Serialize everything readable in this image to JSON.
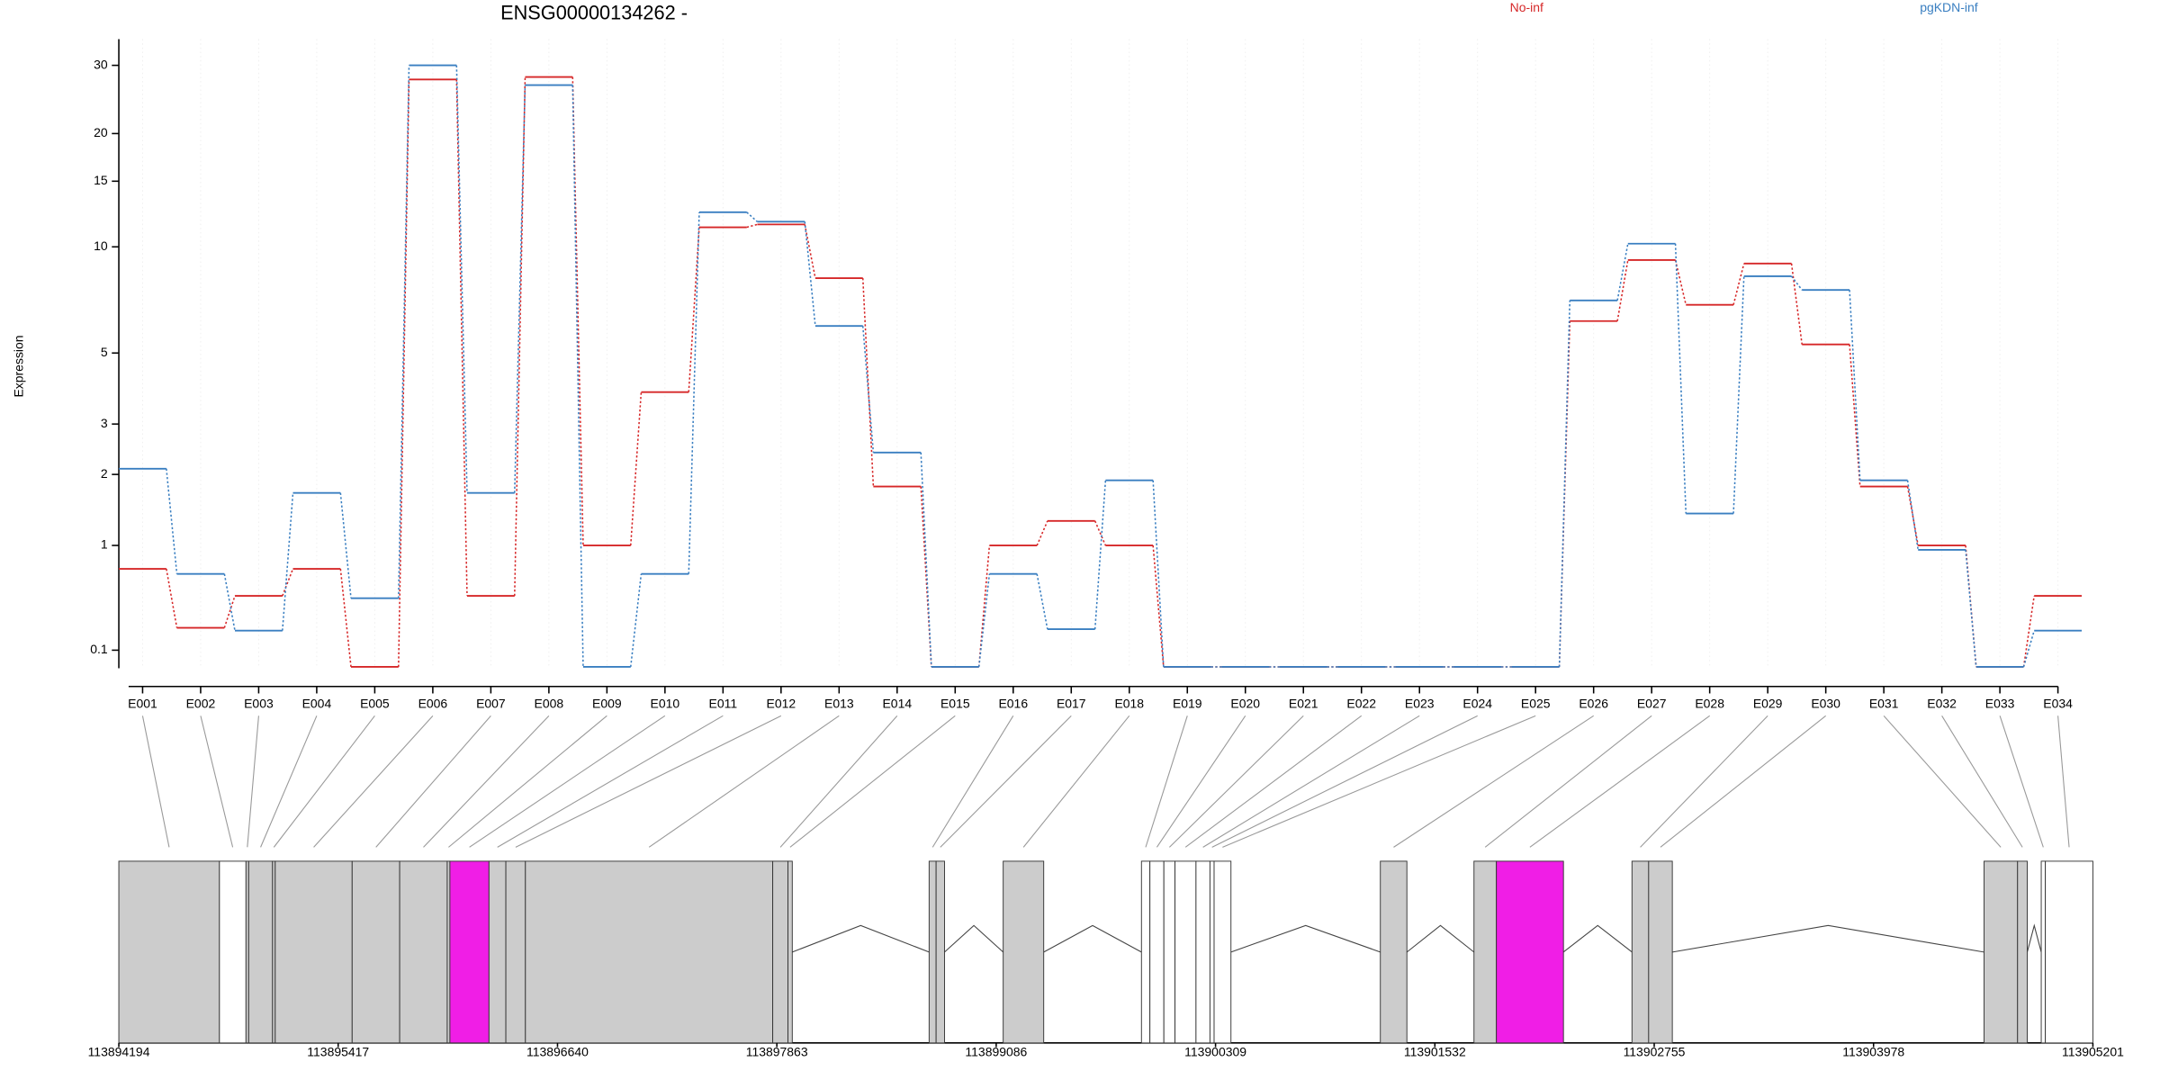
{
  "chart_data": {
    "type": "step",
    "title": "ENSG00000134262 -",
    "ylabel": "Expression",
    "yscale": "log1p",
    "grid": true,
    "categories": [
      "E001",
      "E002",
      "E003",
      "E004",
      "E005",
      "E006",
      "E007",
      "E008",
      "E009",
      "E010",
      "E011",
      "E012",
      "E013",
      "E014",
      "E015",
      "E016",
      "E017",
      "E018",
      "E019",
      "E020",
      "E021",
      "E022",
      "E023",
      "E024",
      "E025",
      "E026",
      "E027",
      "E028",
      "E029",
      "E030",
      "E031",
      "E032",
      "E033",
      "E034"
    ],
    "series": [
      {
        "name": "No-inf",
        "color": "#d62728",
        "values": [
          0.75,
          0.25,
          0.5,
          0.75,
          0,
          27.6,
          0.5,
          28,
          1.0,
          3.8,
          11.3,
          11.5,
          8.2,
          1.8,
          0,
          1.0,
          1.3,
          1.0,
          0,
          0,
          0,
          0,
          0,
          0,
          0,
          6.2,
          9.2,
          6.9,
          9.0,
          5.3,
          1.8,
          1.0,
          0,
          0.5
        ]
      },
      {
        "name": "pgKDN-inf",
        "color": "#3a7fc1",
        "values": [
          2.1,
          0.7,
          0.23,
          1.7,
          0.48,
          30,
          1.7,
          26.7,
          0,
          0.7,
          12.4,
          11.7,
          6.0,
          2.4,
          0,
          0.7,
          0.24,
          1.9,
          0,
          0,
          0,
          0,
          0,
          0,
          0,
          7.1,
          10.2,
          1.4,
          8.3,
          7.6,
          1.9,
          0.95,
          0,
          0.23
        ]
      }
    ],
    "ylim": [
      0,
      35
    ],
    "yticks": [
      0.1,
      1,
      2,
      3,
      5,
      10,
      15,
      20,
      30
    ],
    "gene_model": {
      "xlim": [
        113894194,
        113905201
      ],
      "xticks": [
        113894194,
        113895417,
        113896640,
        113897863,
        113899086,
        113900309,
        113901532,
        113902755,
        113903978,
        113905201
      ],
      "exons": [
        {
          "start": 113894194,
          "end": 113894755,
          "color": "#cccccc"
        },
        {
          "start": 113894755,
          "end": 113894903,
          "color": "#ffffff"
        },
        {
          "start": 113894903,
          "end": 113894918,
          "color": "#cccccc"
        },
        {
          "start": 113894918,
          "end": 113895051,
          "color": "#cccccc"
        },
        {
          "start": 113895051,
          "end": 113895066,
          "color": "#cccccc"
        },
        {
          "start": 113895066,
          "end": 113895495,
          "color": "#cccccc"
        },
        {
          "start": 113895495,
          "end": 113895760,
          "color": "#cccccc"
        },
        {
          "start": 113895760,
          "end": 113896025,
          "color": "#cccccc"
        },
        {
          "start": 113896025,
          "end": 113896040,
          "color": "#cccccc"
        },
        {
          "start": 113896040,
          "end": 113896258,
          "color": "#f01ee6"
        },
        {
          "start": 113896258,
          "end": 113896352,
          "color": "#cccccc"
        },
        {
          "start": 113896352,
          "end": 113896461,
          "color": "#cccccc"
        },
        {
          "start": 113896461,
          "end": 113897840,
          "color": "#cccccc"
        },
        {
          "start": 113897840,
          "end": 113897925,
          "color": "#cccccc"
        },
        {
          "start": 113897925,
          "end": 113897949,
          "color": "#cccccc"
        },
        {
          "start": 113898712,
          "end": 113898751,
          "color": "#cccccc"
        },
        {
          "start": 113898751,
          "end": 113898798,
          "color": "#cccccc"
        },
        {
          "start": 113899125,
          "end": 113899351,
          "color": "#cccccc"
        },
        {
          "start": 113899896,
          "end": 113899943,
          "color": "#ffffff"
        },
        {
          "start": 113899943,
          "end": 113900021,
          "color": "#ffffff"
        },
        {
          "start": 113900021,
          "end": 113900083,
          "color": "#ffffff"
        },
        {
          "start": 113900083,
          "end": 113900200,
          "color": "#ffffff"
        },
        {
          "start": 113900200,
          "end": 113900278,
          "color": "#ffffff"
        },
        {
          "start": 113900278,
          "end": 113900301,
          "color": "#ffffff"
        },
        {
          "start": 113900301,
          "end": 113900395,
          "color": "#ffffff"
        },
        {
          "start": 113901228,
          "end": 113901376,
          "color": "#cccccc"
        },
        {
          "start": 113901750,
          "end": 113901875,
          "color": "#cccccc"
        },
        {
          "start": 113901875,
          "end": 113902249,
          "color": "#f01ee6"
        },
        {
          "start": 113902631,
          "end": 113902724,
          "color": "#cccccc"
        },
        {
          "start": 113902724,
          "end": 113902856,
          "color": "#cccccc"
        },
        {
          "start": 113904594,
          "end": 113904781,
          "color": "#cccccc"
        },
        {
          "start": 113904781,
          "end": 113904835,
          "color": "#cccccc"
        },
        {
          "start": 113904913,
          "end": 113904936,
          "color": "#ffffff"
        },
        {
          "start": 113904936,
          "end": 113905201,
          "color": "#ffffff"
        }
      ]
    }
  }
}
